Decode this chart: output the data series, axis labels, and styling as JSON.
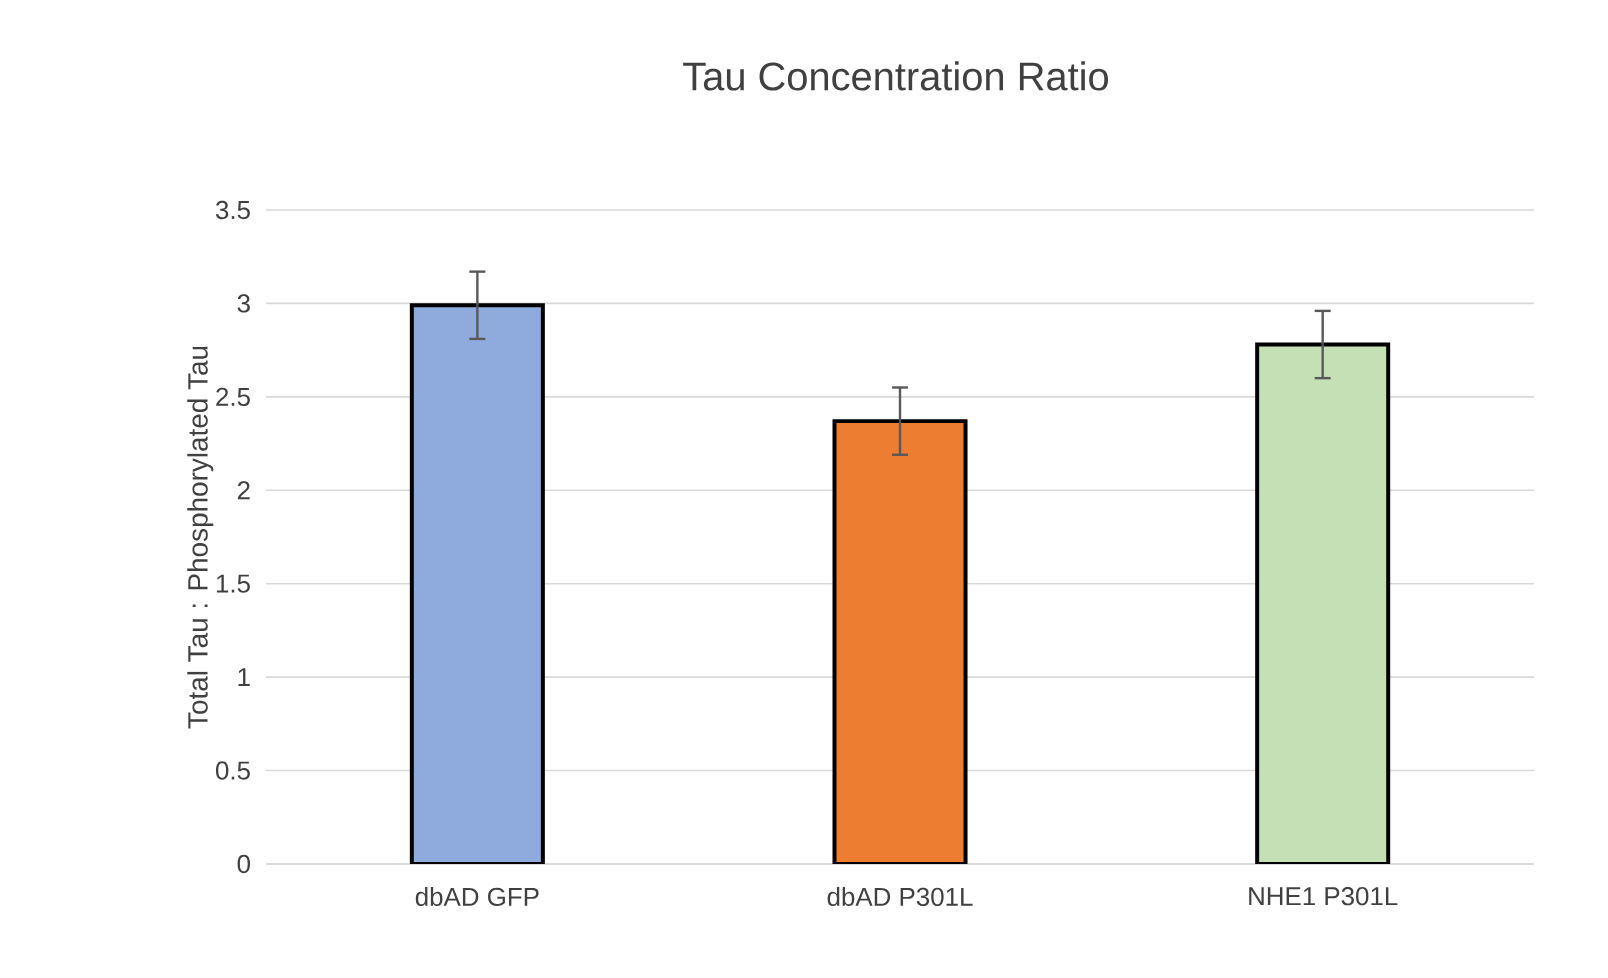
{
  "chart_data": {
    "type": "bar",
    "title": "Tau Concentration Ratio",
    "ylabel": "Total Tau : Phosphorylated Tau",
    "categories": [
      "dbAD GFP",
      "dbAD P301L",
      "NHE1 P301L"
    ],
    "values": [
      2.99,
      2.37,
      2.78
    ],
    "errors": [
      0.18,
      0.18,
      0.18
    ],
    "colors": [
      "#8faadc",
      "#ed7d31",
      "#c5e0b4"
    ],
    "ylim": [
      0,
      3.5
    ],
    "yticks": [
      0,
      0.5,
      1,
      1.5,
      2,
      2.5,
      3,
      3.5
    ],
    "grid": "y"
  }
}
